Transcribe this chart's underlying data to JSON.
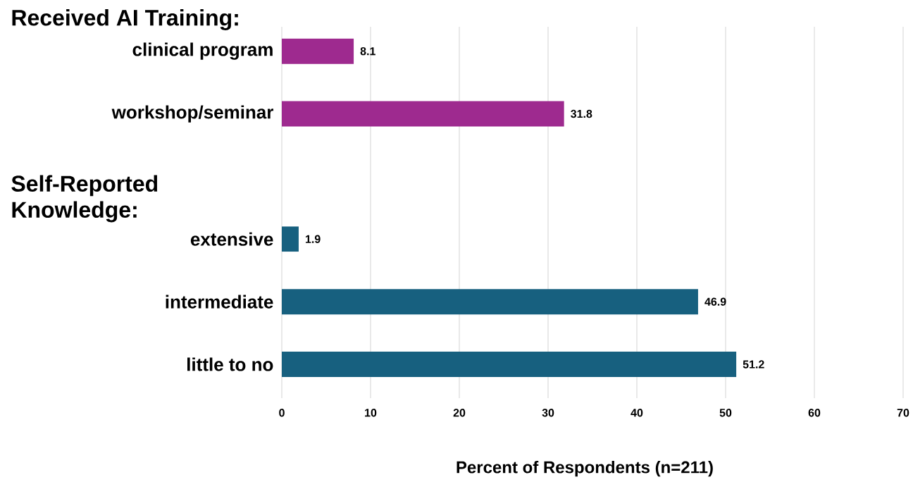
{
  "chart_data": {
    "type": "bar",
    "orientation": "horizontal",
    "categories": [
      "clinical program",
      "workshop/seminar",
      null,
      "extensive",
      "intermediate",
      "little to no"
    ],
    "values": [
      8.1,
      31.8,
      null,
      1.9,
      46.9,
      51.2
    ],
    "colors": [
      "#9e2a8f",
      "#9e2a8f",
      null,
      "#17607f",
      "#17607f",
      "#17607f"
    ],
    "xlabel": "Percent of Respondents (n=211)",
    "xlim": [
      0,
      70
    ],
    "xticks": [
      0,
      10,
      20,
      30,
      40,
      50,
      60,
      70
    ],
    "grid": "x",
    "data_labels": true,
    "annotations": [
      "Received AI Training:",
      "Self-Reported Knowledge:"
    ]
  }
}
